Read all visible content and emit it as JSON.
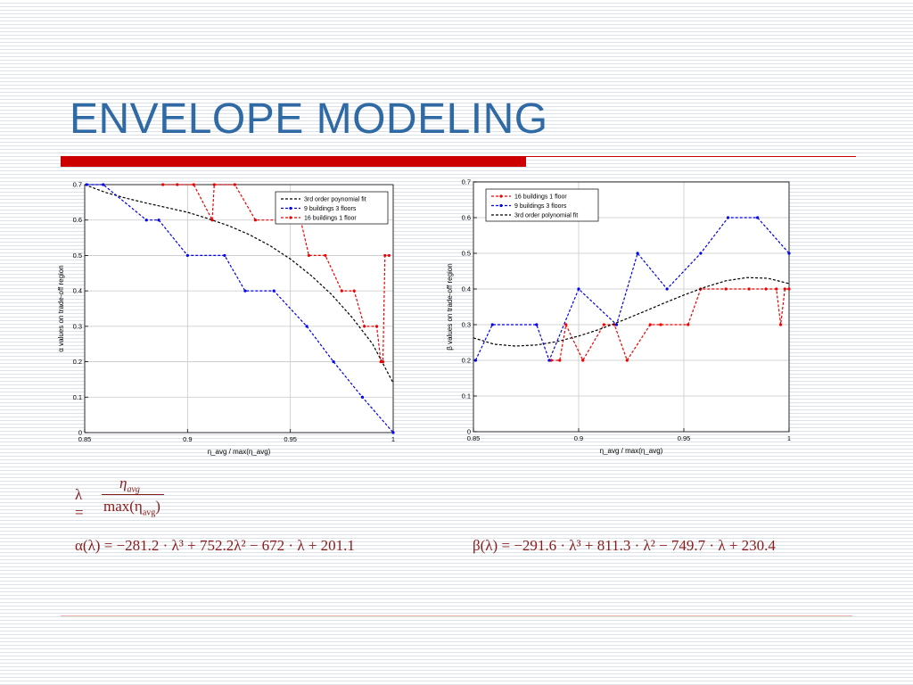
{
  "slide": {
    "title": "ENVELOPE MODELING"
  },
  "formulas": {
    "lambda_def": {
      "lhs": "λ =",
      "numerator": "η",
      "numerator_sub": "avg",
      "denominator": "max(η",
      "denominator_sub": "avg",
      "denominator_close": ")"
    },
    "alpha": "α(λ) = −281.2 · λ³ + 752.2λ² − 672 · λ + 201.1",
    "beta": "β(λ) = −291.6 · λ³ + 811.3 · λ² − 749.7 · λ + 230.4"
  },
  "chart_data": [
    {
      "type": "line",
      "xlabel": "η_avg / max(η_avg)",
      "ylabel": "α values on trade-off region",
      "xlim": [
        0.85,
        1.0
      ],
      "ylim": [
        0,
        0.7
      ],
      "xticks": [
        "0.85",
        "0.9",
        "0.95",
        "1"
      ],
      "yticks": [
        "0",
        "0.1",
        "0.2",
        "0.3",
        "0.4",
        "0.5",
        "0.6",
        "0.7"
      ],
      "grid": true,
      "legend_position": "top-right",
      "series": [
        {
          "name": "3rd order poynomial fit",
          "color": "#000000",
          "style": "dashed",
          "x": [
            0.85,
            0.86,
            0.87,
            0.88,
            0.89,
            0.9,
            0.91,
            0.92,
            0.93,
            0.94,
            0.95,
            0.96,
            0.97,
            0.98,
            0.99,
            1.0
          ],
          "y": [
            0.7,
            0.678,
            0.662,
            0.648,
            0.635,
            0.622,
            0.604,
            0.584,
            0.559,
            0.528,
            0.49,
            0.444,
            0.39,
            0.325,
            0.25,
            0.14
          ]
        },
        {
          "name": "9 buildings 3 floors",
          "color": "#0000ee",
          "style": "dashed-marker",
          "x": [
            0.851,
            0.859,
            0.88,
            0.886,
            0.9,
            0.918,
            0.928,
            0.942,
            0.958,
            0.971,
            0.985,
            1.0
          ],
          "y": [
            0.7,
            0.7,
            0.6,
            0.6,
            0.5,
            0.5,
            0.4,
            0.4,
            0.3,
            0.2,
            0.1,
            0.0
          ]
        },
        {
          "name": "16 buildings 1 floor",
          "color": "#ee0000",
          "style": "dashed-marker",
          "x": [
            0.888,
            0.895,
            0.903,
            0.912,
            0.913,
            0.923,
            0.933,
            0.944,
            0.955,
            0.959,
            0.967,
            0.975,
            0.981,
            0.986,
            0.992,
            0.994,
            0.995,
            0.996,
            0.998
          ],
          "y": [
            0.7,
            0.7,
            0.7,
            0.6,
            0.7,
            0.7,
            0.6,
            0.6,
            0.6,
            0.5,
            0.5,
            0.4,
            0.4,
            0.3,
            0.3,
            0.2,
            0.2,
            0.5,
            0.5
          ]
        }
      ]
    },
    {
      "type": "line",
      "xlabel": "η_avg / max(η_avg)",
      "ylabel": "β values on trade-off region",
      "xlim": [
        0.85,
        1.0
      ],
      "ylim": [
        0,
        0.7
      ],
      "xticks": [
        "0.85",
        "0.9",
        "0.95",
        "1"
      ],
      "yticks": [
        "0",
        "0.1",
        "0.2",
        "0.3",
        "0.4",
        "0.5",
        "0.6",
        "0.7"
      ],
      "grid": true,
      "legend_position": "top-left",
      "series": [
        {
          "name": "16 buildings 1 floor",
          "color": "#ee0000",
          "style": "dashed-marker",
          "x": [
            0.887,
            0.891,
            0.894,
            0.902,
            0.912,
            0.917,
            0.923,
            0.934,
            0.939,
            0.952,
            0.958,
            0.97,
            0.981,
            0.989,
            0.994,
            0.996,
            0.998,
            1.0
          ],
          "y": [
            0.2,
            0.2,
            0.3,
            0.2,
            0.3,
            0.3,
            0.2,
            0.3,
            0.3,
            0.3,
            0.4,
            0.4,
            0.4,
            0.4,
            0.4,
            0.3,
            0.4,
            0.4
          ]
        },
        {
          "name": "9 buildings 3 floors",
          "color": "#0000ee",
          "style": "dashed-marker",
          "x": [
            0.851,
            0.859,
            0.88,
            0.886,
            0.9,
            0.918,
            0.928,
            0.942,
            0.958,
            0.971,
            0.985,
            1.0
          ],
          "y": [
            0.2,
            0.3,
            0.3,
            0.2,
            0.4,
            0.3,
            0.5,
            0.4,
            0.5,
            0.6,
            0.6,
            0.5
          ]
        },
        {
          "name": "3rd order polynomial fit",
          "color": "#000000",
          "style": "dashed",
          "x": [
            0.85,
            0.86,
            0.87,
            0.88,
            0.89,
            0.9,
            0.91,
            0.92,
            0.93,
            0.94,
            0.95,
            0.96,
            0.97,
            0.98,
            0.99,
            1.0
          ],
          "y": [
            0.263,
            0.245,
            0.24,
            0.243,
            0.253,
            0.268,
            0.287,
            0.31,
            0.334,
            0.359,
            0.383,
            0.405,
            0.423,
            0.432,
            0.43,
            0.415
          ]
        }
      ]
    }
  ]
}
